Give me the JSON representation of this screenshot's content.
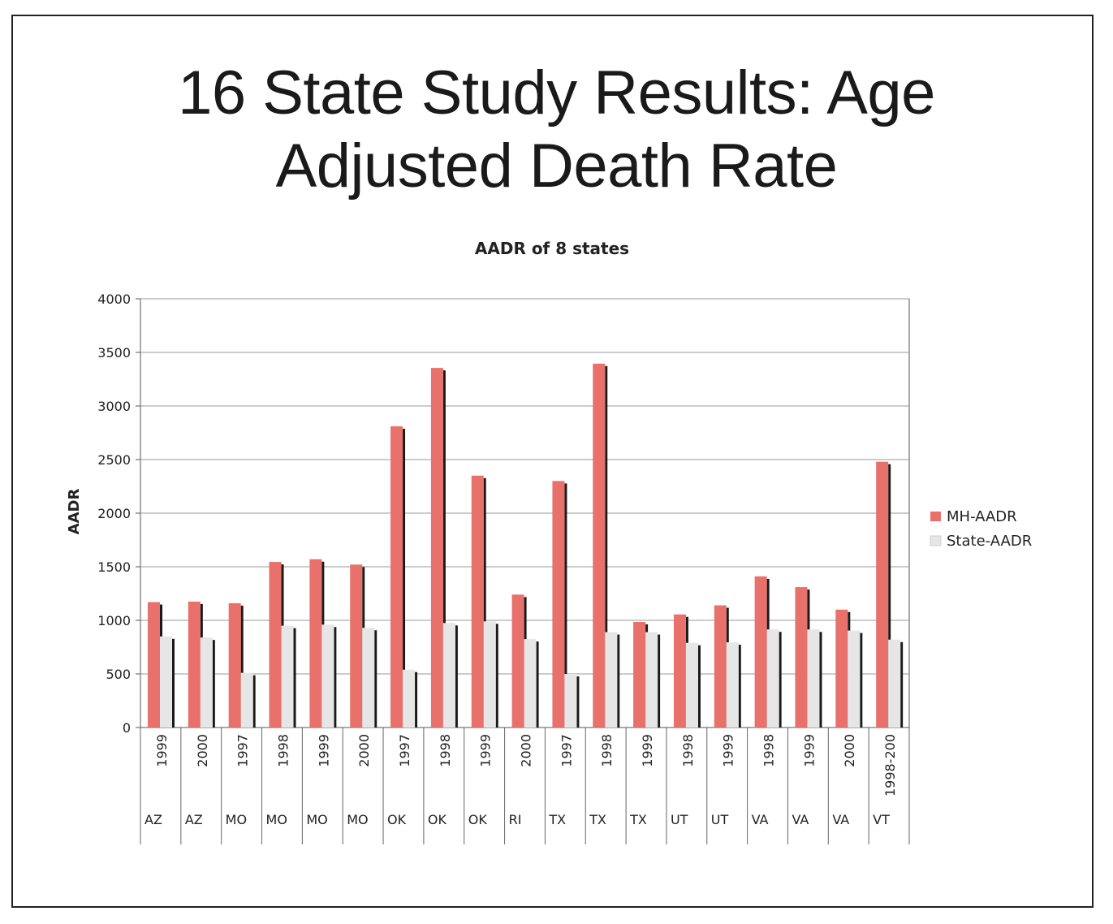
{
  "slide": {
    "title_line1": "16 State Study Results: Age",
    "title_line2": "Adjusted Death Rate"
  },
  "chart_data": {
    "type": "bar",
    "title": "AADR of 8 states",
    "xlabel": "",
    "ylabel": "AADR",
    "ylim": [
      0,
      4000
    ],
    "yticks": [
      0,
      500,
      1000,
      1500,
      2000,
      2500,
      3000,
      3500,
      4000
    ],
    "grid": true,
    "legend_position": "right",
    "categories": [
      {
        "year": "1999",
        "state": "AZ"
      },
      {
        "year": "2000",
        "state": "AZ"
      },
      {
        "year": "1997",
        "state": "MO"
      },
      {
        "year": "1998",
        "state": "MO"
      },
      {
        "year": "1999",
        "state": "MO"
      },
      {
        "year": "2000",
        "state": "MO"
      },
      {
        "year": "1997",
        "state": "OK"
      },
      {
        "year": "1998",
        "state": "OK"
      },
      {
        "year": "1999",
        "state": "OK"
      },
      {
        "year": "2000",
        "state": "RI"
      },
      {
        "year": "1997",
        "state": "TX"
      },
      {
        "year": "1998",
        "state": "TX"
      },
      {
        "year": "1999",
        "state": "TX"
      },
      {
        "year": "1998",
        "state": "UT"
      },
      {
        "year": "1999",
        "state": "UT"
      },
      {
        "year": "1998",
        "state": "VA"
      },
      {
        "year": "1999",
        "state": "VA"
      },
      {
        "year": "2000",
        "state": "VA"
      },
      {
        "year": "1998-200",
        "state": "VT"
      }
    ],
    "series": [
      {
        "name": "MH-AADR",
        "color": "#e8716b",
        "values": [
          1170,
          1175,
          1160,
          1545,
          1570,
          1520,
          2810,
          3355,
          2350,
          1240,
          2300,
          3395,
          985,
          1055,
          1140,
          1410,
          1310,
          1100,
          2480
        ]
      },
      {
        "name": "State-AADR",
        "color": "#e6e6e6",
        "values": [
          850,
          840,
          510,
          950,
          960,
          930,
          540,
          975,
          990,
          825,
          500,
          890,
          890,
          790,
          795,
          915,
          915,
          905,
          820
        ]
      }
    ]
  }
}
